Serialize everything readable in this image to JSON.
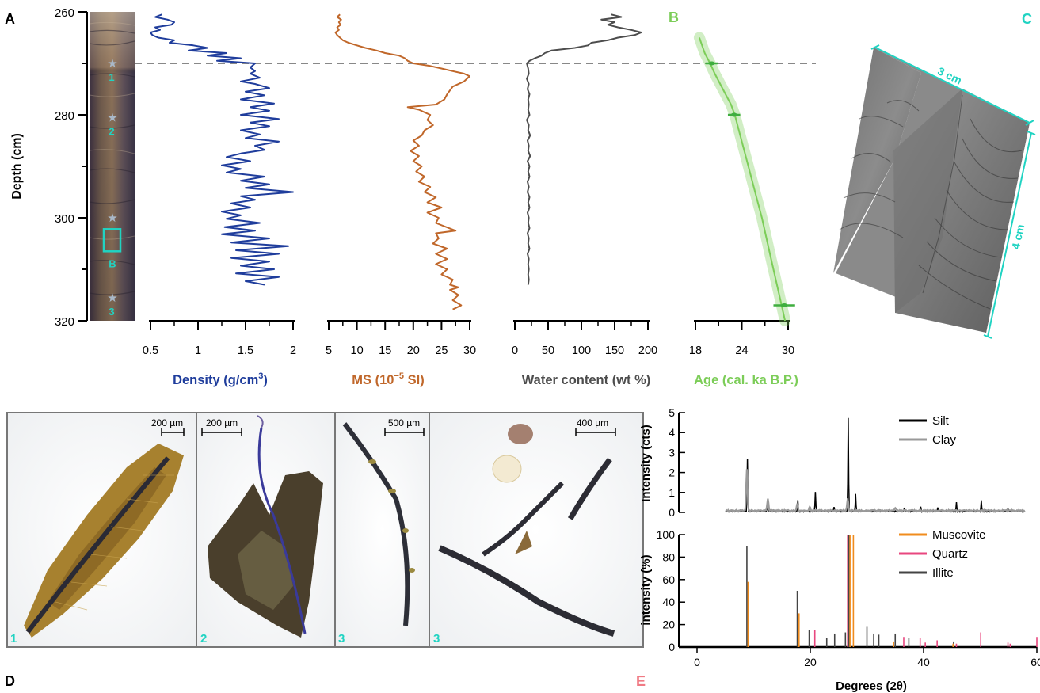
{
  "panels": {
    "A": "A",
    "B": "B",
    "C": "C",
    "D": "D",
    "E": "E"
  },
  "colors": {
    "density": "#1f3d9c",
    "ms": "#c0672a",
    "water": "#4d4d4d",
    "age": "#7ccd58",
    "cyan": "#20d3c2",
    "silt": "#000000",
    "clay": "#999999",
    "muscovite": "#f08c1e",
    "quartz": "#e8477f",
    "illite": "#444444",
    "panelE_label": "#f07a84"
  },
  "depth_axis": {
    "label": "Depth (cm)",
    "ticks": [
      "260",
      "280",
      "300",
      "320"
    ],
    "range": [
      260,
      320
    ]
  },
  "core": {
    "stars": [
      {
        "label": "1",
        "depth": 270
      },
      {
        "label": "2",
        "depth": 280.5
      },
      {
        "label": "3",
        "depth": 315.5
      },
      {
        "label": "",
        "depth": 300
      }
    ],
    "box_label": "B"
  },
  "charts_a": [
    {
      "type": "line",
      "key": "density",
      "xlabel_pre": "Density (g/cm",
      "xlabel_sup": "3",
      "xlabel_post": ")",
      "ticks": [
        "0.5",
        "1",
        "1.5",
        "2"
      ],
      "tick_values": [
        0.5,
        1,
        1.5,
        2
      ],
      "xlim": [
        0.5,
        2
      ],
      "points": [
        [
          0.62,
          260.5
        ],
        [
          0.55,
          261
        ],
        [
          0.68,
          261.5
        ],
        [
          0.75,
          262
        ],
        [
          0.72,
          262.5
        ],
        [
          0.55,
          263
        ],
        [
          0.6,
          263.5
        ],
        [
          0.5,
          264
        ],
        [
          0.52,
          264.5
        ],
        [
          0.58,
          265
        ],
        [
          0.75,
          265.5
        ],
        [
          0.7,
          266
        ],
        [
          0.95,
          266.5
        ],
        [
          1.1,
          267
        ],
        [
          0.9,
          267.5
        ],
        [
          1.3,
          268
        ],
        [
          1.1,
          268.5
        ],
        [
          1.45,
          269
        ],
        [
          1.2,
          269.5
        ],
        [
          1.6,
          270
        ],
        [
          1.55,
          270.8
        ],
        [
          1.6,
          271.5
        ],
        [
          1.55,
          272
        ],
        [
          1.65,
          272.8
        ],
        [
          1.45,
          273.5
        ],
        [
          1.6,
          274
        ],
        [
          1.75,
          274.8
        ],
        [
          1.5,
          275.5
        ],
        [
          1.7,
          276.2
        ],
        [
          1.45,
          277
        ],
        [
          1.8,
          277.8
        ],
        [
          1.55,
          278.5
        ],
        [
          1.75,
          279.2
        ],
        [
          1.45,
          280
        ],
        [
          1.85,
          280.8
        ],
        [
          1.55,
          281.5
        ],
        [
          1.75,
          282.2
        ],
        [
          1.45,
          283
        ],
        [
          1.65,
          283.8
        ],
        [
          1.5,
          284.5
        ],
        [
          1.85,
          285.2
        ],
        [
          1.6,
          286
        ],
        [
          1.7,
          286.8
        ],
        [
          1.45,
          287.5
        ],
        [
          1.3,
          288.2
        ],
        [
          1.55,
          289
        ],
        [
          1.25,
          289.8
        ],
        [
          1.45,
          290.5
        ],
        [
          1.3,
          291.2
        ],
        [
          1.7,
          292
        ],
        [
          1.45,
          292.8
        ],
        [
          1.75,
          293.5
        ],
        [
          1.5,
          294.2
        ],
        [
          2.0,
          295
        ],
        [
          1.45,
          295.8
        ],
        [
          1.6,
          296.5
        ],
        [
          1.35,
          297.2
        ],
        [
          1.55,
          298
        ],
        [
          1.25,
          298.8
        ],
        [
          1.45,
          299.5
        ],
        [
          1.3,
          300.2
        ],
        [
          1.65,
          301
        ],
        [
          1.28,
          301.8
        ],
        [
          1.6,
          302.5
        ],
        [
          1.25,
          303.2
        ],
        [
          1.75,
          304
        ],
        [
          1.35,
          304.8
        ],
        [
          1.95,
          305.5
        ],
        [
          1.4,
          306.3
        ],
        [
          1.85,
          307
        ],
        [
          1.35,
          307.8
        ],
        [
          1.75,
          308.5
        ],
        [
          1.45,
          309.3
        ],
        [
          1.8,
          310
        ],
        [
          1.4,
          310.8
        ],
        [
          1.85,
          311.5
        ],
        [
          1.5,
          312.3
        ],
        [
          1.7,
          313
        ]
      ]
    },
    {
      "type": "line",
      "key": "ms",
      "xlabel_pre": "MS (10",
      "xlabel_sup": "−5",
      "xlabel_post": " SI)",
      "ticks": [
        "5",
        "10",
        "15",
        "20",
        "25",
        "30"
      ],
      "tick_values": [
        5,
        10,
        15,
        20,
        25,
        30
      ],
      "xlim": [
        5,
        30
      ],
      "points": [
        [
          7,
          260.5
        ],
        [
          6.5,
          261
        ],
        [
          7.2,
          261.5
        ],
        [
          6.8,
          262
        ],
        [
          7.1,
          262.5
        ],
        [
          6.5,
          263
        ],
        [
          6.8,
          263.5
        ],
        [
          6.2,
          264
        ],
        [
          6.5,
          264.5
        ],
        [
          7,
          265
        ],
        [
          7.5,
          265.5
        ],
        [
          8.5,
          266
        ],
        [
          10,
          266.5
        ],
        [
          11.5,
          267
        ],
        [
          13.5,
          267.5
        ],
        [
          15,
          268
        ],
        [
          17.5,
          268.5
        ],
        [
          18.5,
          269
        ],
        [
          19,
          269.5
        ],
        [
          20,
          270
        ],
        [
          23,
          270.5
        ],
        [
          25,
          271
        ],
        [
          27,
          271.5
        ],
        [
          29,
          272
        ],
        [
          30,
          272.5
        ],
        [
          29,
          273.5
        ],
        [
          27,
          274.5
        ],
        [
          26,
          276
        ],
        [
          25.5,
          277
        ],
        [
          24,
          278
        ],
        [
          19,
          278.5
        ],
        [
          21,
          279
        ],
        [
          22,
          279.5
        ],
        [
          23,
          280
        ],
        [
          22.5,
          281
        ],
        [
          23.5,
          282
        ],
        [
          22,
          283
        ],
        [
          21.5,
          284
        ],
        [
          20,
          285
        ],
        [
          21,
          286
        ],
        [
          19.5,
          287
        ],
        [
          21,
          288
        ],
        [
          20,
          289
        ],
        [
          21.5,
          290
        ],
        [
          20.5,
          291
        ],
        [
          22,
          292
        ],
        [
          21,
          293
        ],
        [
          23,
          294
        ],
        [
          22,
          295
        ],
        [
          24,
          296
        ],
        [
          22.5,
          297
        ],
        [
          25,
          298
        ],
        [
          22.5,
          299
        ],
        [
          24.5,
          300
        ],
        [
          24,
          301
        ],
        [
          27.5,
          302.5
        ],
        [
          24,
          303
        ],
        [
          24.5,
          304
        ],
        [
          23.5,
          305
        ],
        [
          26,
          306
        ],
        [
          24,
          307
        ],
        [
          26,
          308
        ],
        [
          24,
          309
        ],
        [
          26,
          310
        ],
        [
          25,
          311
        ],
        [
          27,
          312
        ],
        [
          26.5,
          313
        ],
        [
          28,
          313.5
        ],
        [
          26.5,
          314
        ],
        [
          28,
          315
        ],
        [
          27,
          316
        ],
        [
          28.5,
          317
        ],
        [
          27,
          317.8
        ]
      ]
    },
    {
      "type": "line",
      "key": "water",
      "xlabel_pre": "Water content (wt %)",
      "xlabel_sup": "",
      "xlabel_post": "",
      "ticks": [
        "0",
        "50",
        "100",
        "150",
        "200"
      ],
      "tick_values": [
        0,
        50,
        100,
        150,
        200
      ],
      "xlim": [
        0,
        200
      ],
      "points": [
        [
          145,
          260.5
        ],
        [
          160,
          261
        ],
        [
          130,
          261.5
        ],
        [
          150,
          262
        ],
        [
          140,
          262.5
        ],
        [
          155,
          263
        ],
        [
          175,
          263.5
        ],
        [
          190,
          264
        ],
        [
          180,
          264.5
        ],
        [
          155,
          265
        ],
        [
          140,
          265.5
        ],
        [
          115,
          266
        ],
        [
          110,
          266.5
        ],
        [
          90,
          267
        ],
        [
          55,
          267.5
        ],
        [
          45,
          268
        ],
        [
          40,
          268.5
        ],
        [
          30,
          269
        ],
        [
          22,
          269.5
        ],
        [
          18,
          270
        ],
        [
          20,
          271
        ],
        [
          21,
          272
        ],
        [
          18,
          273
        ],
        [
          21,
          274
        ],
        [
          19,
          275
        ],
        [
          22,
          276
        ],
        [
          20,
          277
        ],
        [
          21,
          278
        ],
        [
          20,
          279
        ],
        [
          22,
          280
        ],
        [
          18,
          281
        ],
        [
          21,
          282
        ],
        [
          20,
          283
        ],
        [
          23,
          284
        ],
        [
          19,
          285
        ],
        [
          21,
          286
        ],
        [
          20,
          287
        ],
        [
          23,
          288
        ],
        [
          19,
          289
        ],
        [
          22,
          290
        ],
        [
          20,
          291
        ],
        [
          22,
          292
        ],
        [
          19,
          293
        ],
        [
          21,
          294
        ],
        [
          19,
          295
        ],
        [
          22,
          296
        ],
        [
          20,
          297
        ],
        [
          22,
          298
        ],
        [
          19,
          299
        ],
        [
          21,
          300
        ],
        [
          20,
          301
        ],
        [
          22,
          302
        ],
        [
          19,
          303
        ],
        [
          21,
          304
        ],
        [
          20,
          305
        ],
        [
          22,
          306
        ],
        [
          19,
          307
        ],
        [
          21,
          308
        ],
        [
          20,
          309
        ],
        [
          21,
          310
        ],
        [
          20,
          311
        ],
        [
          21,
          312
        ],
        [
          20,
          313
        ]
      ]
    },
    {
      "type": "line",
      "key": "age",
      "xlabel_pre": "Age (cal. ka B.P.)",
      "xlabel_sup": "",
      "xlabel_post": "",
      "ticks": [
        "18",
        "24",
        "30"
      ],
      "tick_values": [
        18,
        24,
        30
      ],
      "xlim": [
        18,
        30
      ],
      "curve": [
        [
          18.5,
          265
        ],
        [
          19.2,
          268
        ],
        [
          19.9,
          270
        ],
        [
          20.5,
          272
        ],
        [
          21.2,
          274
        ],
        [
          21.9,
          276
        ],
        [
          22.6,
          278
        ],
        [
          23.1,
          280
        ],
        [
          23.8,
          284
        ],
        [
          24.5,
          288
        ],
        [
          25.2,
          292
        ],
        [
          25.9,
          296
        ],
        [
          26.6,
          300
        ],
        [
          27.2,
          304
        ],
        [
          27.8,
          308
        ],
        [
          28.4,
          312
        ],
        [
          29.0,
          316
        ],
        [
          29.6,
          320
        ]
      ],
      "dates": [
        {
          "age": 20.1,
          "depth": 270,
          "err": 0.8
        },
        {
          "age": 23,
          "depth": 280,
          "err": 0.8
        },
        {
          "age": 29.5,
          "depth": 317,
          "err": 1.4
        }
      ]
    }
  ],
  "panel_c": {
    "scale_top": "3 cm",
    "scale_side": "4 cm"
  },
  "panel_d": {
    "photos": [
      {
        "number": "1",
        "scale": "200 µm"
      },
      {
        "number": "2",
        "scale": "200 µm"
      },
      {
        "number": "3",
        "scale": "500 µm"
      },
      {
        "number": "3",
        "scale": "400 µm"
      }
    ]
  },
  "chart_data": [
    {
      "type": "line",
      "title": "",
      "ylabel": "Intensity (cts)",
      "ylim": [
        0,
        5
      ],
      "yticks": [
        "0",
        "1",
        "2",
        "3",
        "4",
        "5"
      ],
      "series": [
        {
          "name": "Silt",
          "color": "#000000",
          "peaks": [
            [
              8.9,
              2.6
            ],
            [
              12.4,
              0.2
            ],
            [
              17.8,
              0.55
            ],
            [
              20.9,
              0.95
            ],
            [
              24.2,
              0.25
            ],
            [
              26.7,
              4.7
            ],
            [
              28.0,
              0.9
            ],
            [
              36.6,
              0.2
            ],
            [
              39.5,
              0.25
            ],
            [
              42.5,
              0.2
            ],
            [
              45.8,
              0.45
            ],
            [
              50.2,
              0.55
            ],
            [
              54.9,
              0.15
            ],
            [
              60,
              0.1
            ]
          ]
        },
        {
          "name": "Clay",
          "color": "#999999",
          "peaks": [
            [
              8.8,
              2.1
            ],
            [
              12.5,
              0.6
            ],
            [
              17.7,
              0.35
            ],
            [
              19.9,
              0.2
            ],
            [
              26.6,
              0.6
            ],
            [
              35,
              0.15
            ]
          ]
        }
      ]
    },
    {
      "type": "bar",
      "title": "",
      "xlabel": "Degrees (2θ)",
      "ylabel": "intensity (%)",
      "xlim": [
        0,
        60
      ],
      "ylim": [
        0,
        100
      ],
      "xticks": [
        "0",
        "20",
        "40",
        "60"
      ],
      "yticks": [
        "0",
        "20",
        "40",
        "60",
        "80",
        "100"
      ],
      "series": [
        {
          "name": "Muscovite",
          "color": "#f08c1e",
          "lines": [
            [
              8.8,
              58
            ],
            [
              17.8,
              30
            ],
            [
              26.8,
              100
            ],
            [
              27.4,
              100
            ],
            [
              34.5,
              5
            ],
            [
              45,
              3
            ]
          ]
        },
        {
          "name": "Quartz",
          "color": "#e8477f",
          "lines": [
            [
              20.8,
              15
            ],
            [
              26.6,
              100
            ],
            [
              36.5,
              9
            ],
            [
              39.4,
              8
            ],
            [
              40.3,
              4
            ],
            [
              42.4,
              6
            ],
            [
              45.8,
              3
            ],
            [
              50.1,
              13
            ],
            [
              54.9,
              4
            ],
            [
              55.3,
              3
            ],
            [
              60,
              9
            ]
          ]
        },
        {
          "name": "Illite",
          "color": "#444444",
          "lines": [
            [
              8.8,
              90
            ],
            [
              17.7,
              50
            ],
            [
              19.8,
              15
            ],
            [
              22.9,
              8
            ],
            [
              24.3,
              12
            ],
            [
              26.2,
              13
            ],
            [
              26.8,
              100
            ],
            [
              30,
              18
            ],
            [
              31.2,
              12
            ],
            [
              32.1,
              11
            ],
            [
              35,
              12
            ],
            [
              37.4,
              8
            ],
            [
              45.3,
              5
            ]
          ]
        }
      ]
    }
  ]
}
